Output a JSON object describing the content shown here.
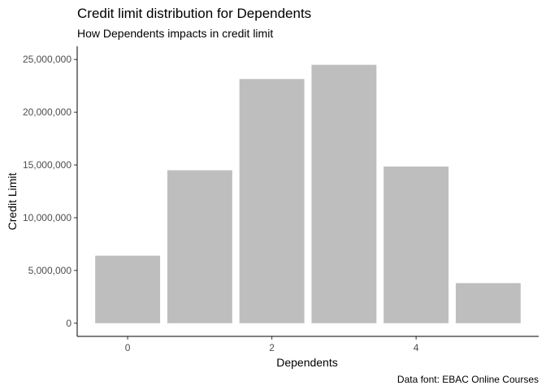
{
  "chart_data": {
    "type": "bar",
    "title": "Credit limit distribution for Dependents",
    "subtitle": "How Dependents impacts in credit limit",
    "xlabel": "Dependents",
    "ylabel": "Credit Limit",
    "caption": "Data font: EBAC Online Courses",
    "categories": [
      0,
      1,
      2,
      3,
      4,
      5
    ],
    "values": [
      6400000,
      14500000,
      23150000,
      24500000,
      14850000,
      3800000
    ],
    "x_ticks": [
      {
        "value": 0,
        "label": "0"
      },
      {
        "value": 2,
        "label": "2"
      },
      {
        "value": 4,
        "label": "4"
      }
    ],
    "y_ticks": [
      {
        "value": 0,
        "label": "0"
      },
      {
        "value": 5000000,
        "label": "5,000,000"
      },
      {
        "value": 10000000,
        "label": "10,000,000"
      },
      {
        "value": 15000000,
        "label": "15,000,000"
      },
      {
        "value": 20000000,
        "label": "20,000,000"
      },
      {
        "value": 25000000,
        "label": "25,000,000"
      }
    ],
    "ylim": [
      -1250000,
      26250000
    ],
    "xlim": [
      -0.7,
      5.7
    ],
    "bar_color": "#bebebe",
    "grid": false,
    "legend": "none"
  }
}
